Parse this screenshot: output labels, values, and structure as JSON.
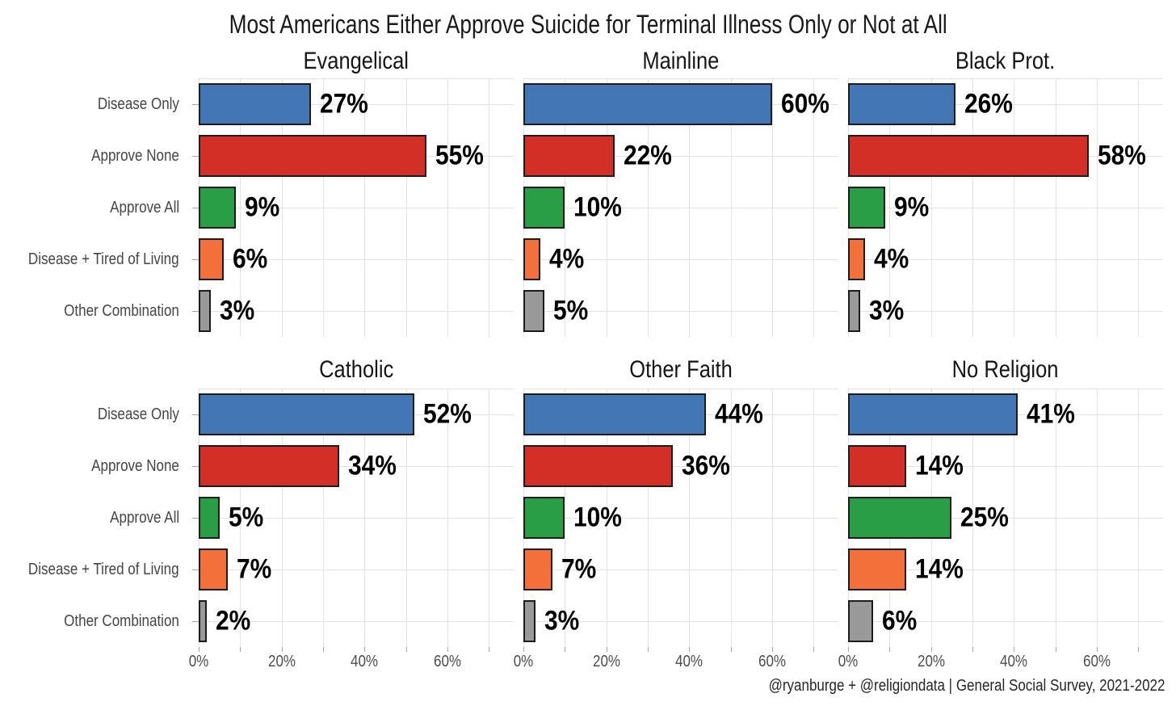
{
  "title": "Most Americans Either Approve Suicide for Terminal Illness Only or Not at All",
  "caption": "@ryanburge + @religiondata | General Social Survey, 2021-2022",
  "chart_data": {
    "type": "bar",
    "orientation": "horizontal",
    "title": "Most Americans Either Approve Suicide for Terminal Illness Only or Not at All",
    "categories": [
      "Disease Only",
      "Approve None",
      "Approve All",
      "Disease + Tired of Living",
      "Other Combination"
    ],
    "facets": [
      {
        "title": "Evangelical",
        "values": [
          27,
          55,
          9,
          6,
          3
        ]
      },
      {
        "title": "Mainline",
        "values": [
          60,
          22,
          10,
          4,
          5
        ]
      },
      {
        "title": "Black Prot.",
        "values": [
          26,
          58,
          9,
          4,
          3
        ]
      },
      {
        "title": "Catholic",
        "values": [
          52,
          34,
          5,
          7,
          2
        ]
      },
      {
        "title": "Other Faith",
        "values": [
          44,
          36,
          10,
          7,
          3
        ]
      },
      {
        "title": "No Religion",
        "values": [
          41,
          14,
          25,
          14,
          6
        ]
      }
    ],
    "value_suffix": "%",
    "xlim": [
      0,
      76
    ],
    "x_gridline_step": 10,
    "x_ticks": [
      0,
      20,
      40,
      60
    ],
    "x_tick_labels": [
      "0%",
      "20%",
      "40%",
      "60%"
    ],
    "grid": true,
    "legend": "none",
    "bar_colors": [
      "#4276b4",
      "#d32f27",
      "#2a9e46",
      "#f4703a",
      "#999999"
    ],
    "bar_border_color": "#1c1c1c",
    "gridline_color": "#e3e3e3",
    "tick_color": "#a8a8a8",
    "axis_text_color": "#4d4d4d",
    "label_text_color": "#000000",
    "background_color": "#ffffff"
  }
}
